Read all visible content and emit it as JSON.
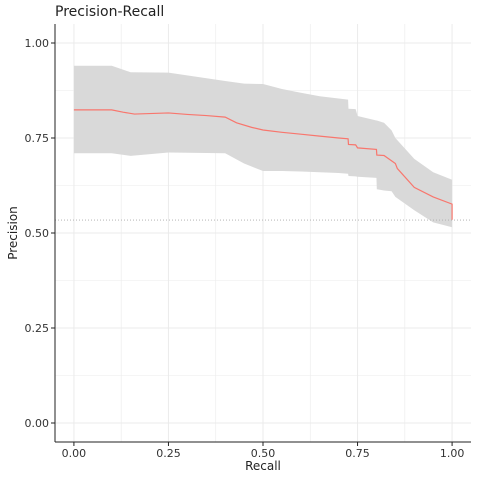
{
  "chart_data": {
    "type": "area",
    "title": "Precision-Recall",
    "xlabel": "Recall",
    "ylabel": "Precision",
    "xlim": [
      -0.05,
      1.05
    ],
    "ylim": [
      -0.05,
      1.05
    ],
    "x_ticks": [
      0,
      0.25,
      0.5,
      0.75,
      1
    ],
    "x_tick_labels": [
      "0.00",
      "0.25",
      "0.50",
      "0.75",
      "1.00"
    ],
    "y_ticks": [
      0,
      0.25,
      0.5,
      0.75,
      1
    ],
    "y_tick_labels": [
      "0.00",
      "0.25",
      "0.50",
      "0.75",
      "1.00"
    ],
    "grid": true,
    "baseline": 0.534,
    "colors": {
      "line": "#f8766d",
      "band": "#d9d9d9",
      "baseline": "#aaaaaa",
      "grid": "#ebebeb",
      "axis": "#222222"
    },
    "series": [
      {
        "type": "line",
        "x": [
          0,
          0.1,
          0.13,
          0.16,
          0.25,
          0.3,
          0.35,
          0.4,
          0.43,
          0.47,
          0.5,
          0.55,
          0.6,
          0.65,
          0.7,
          0.725,
          0.726,
          0.745,
          0.75,
          0.8,
          0.801,
          0.82,
          0.85,
          0.855,
          0.9,
          0.95,
          1,
          1
        ],
        "y": [
          0.824,
          0.824,
          0.818,
          0.813,
          0.816,
          0.812,
          0.809,
          0.805,
          0.79,
          0.778,
          0.771,
          0.765,
          0.76,
          0.755,
          0.75,
          0.748,
          0.733,
          0.732,
          0.724,
          0.72,
          0.705,
          0.704,
          0.683,
          0.67,
          0.62,
          0.595,
          0.576,
          0.535
        ]
      },
      {
        "type": "band",
        "x": [
          0,
          0.1,
          0.15,
          0.25,
          0.4,
          0.45,
          0.5,
          0.55,
          0.6,
          0.65,
          0.7,
          0.725,
          0.726,
          0.745,
          0.75,
          0.8,
          0.801,
          0.82,
          0.84,
          0.85,
          0.9,
          0.95,
          1
        ],
        "upper": [
          0.94,
          0.94,
          0.923,
          0.922,
          0.9,
          0.893,
          0.892,
          0.879,
          0.869,
          0.86,
          0.854,
          0.851,
          0.827,
          0.826,
          0.808,
          0.796,
          0.796,
          0.79,
          0.77,
          0.75,
          0.695,
          0.66,
          0.64
        ],
        "lower": [
          0.71,
          0.71,
          0.703,
          0.712,
          0.71,
          0.683,
          0.663,
          0.663,
          0.662,
          0.66,
          0.658,
          0.656,
          0.65,
          0.649,
          0.648,
          0.645,
          0.615,
          0.612,
          0.61,
          0.595,
          0.56,
          0.528,
          0.515
        ]
      }
    ]
  }
}
